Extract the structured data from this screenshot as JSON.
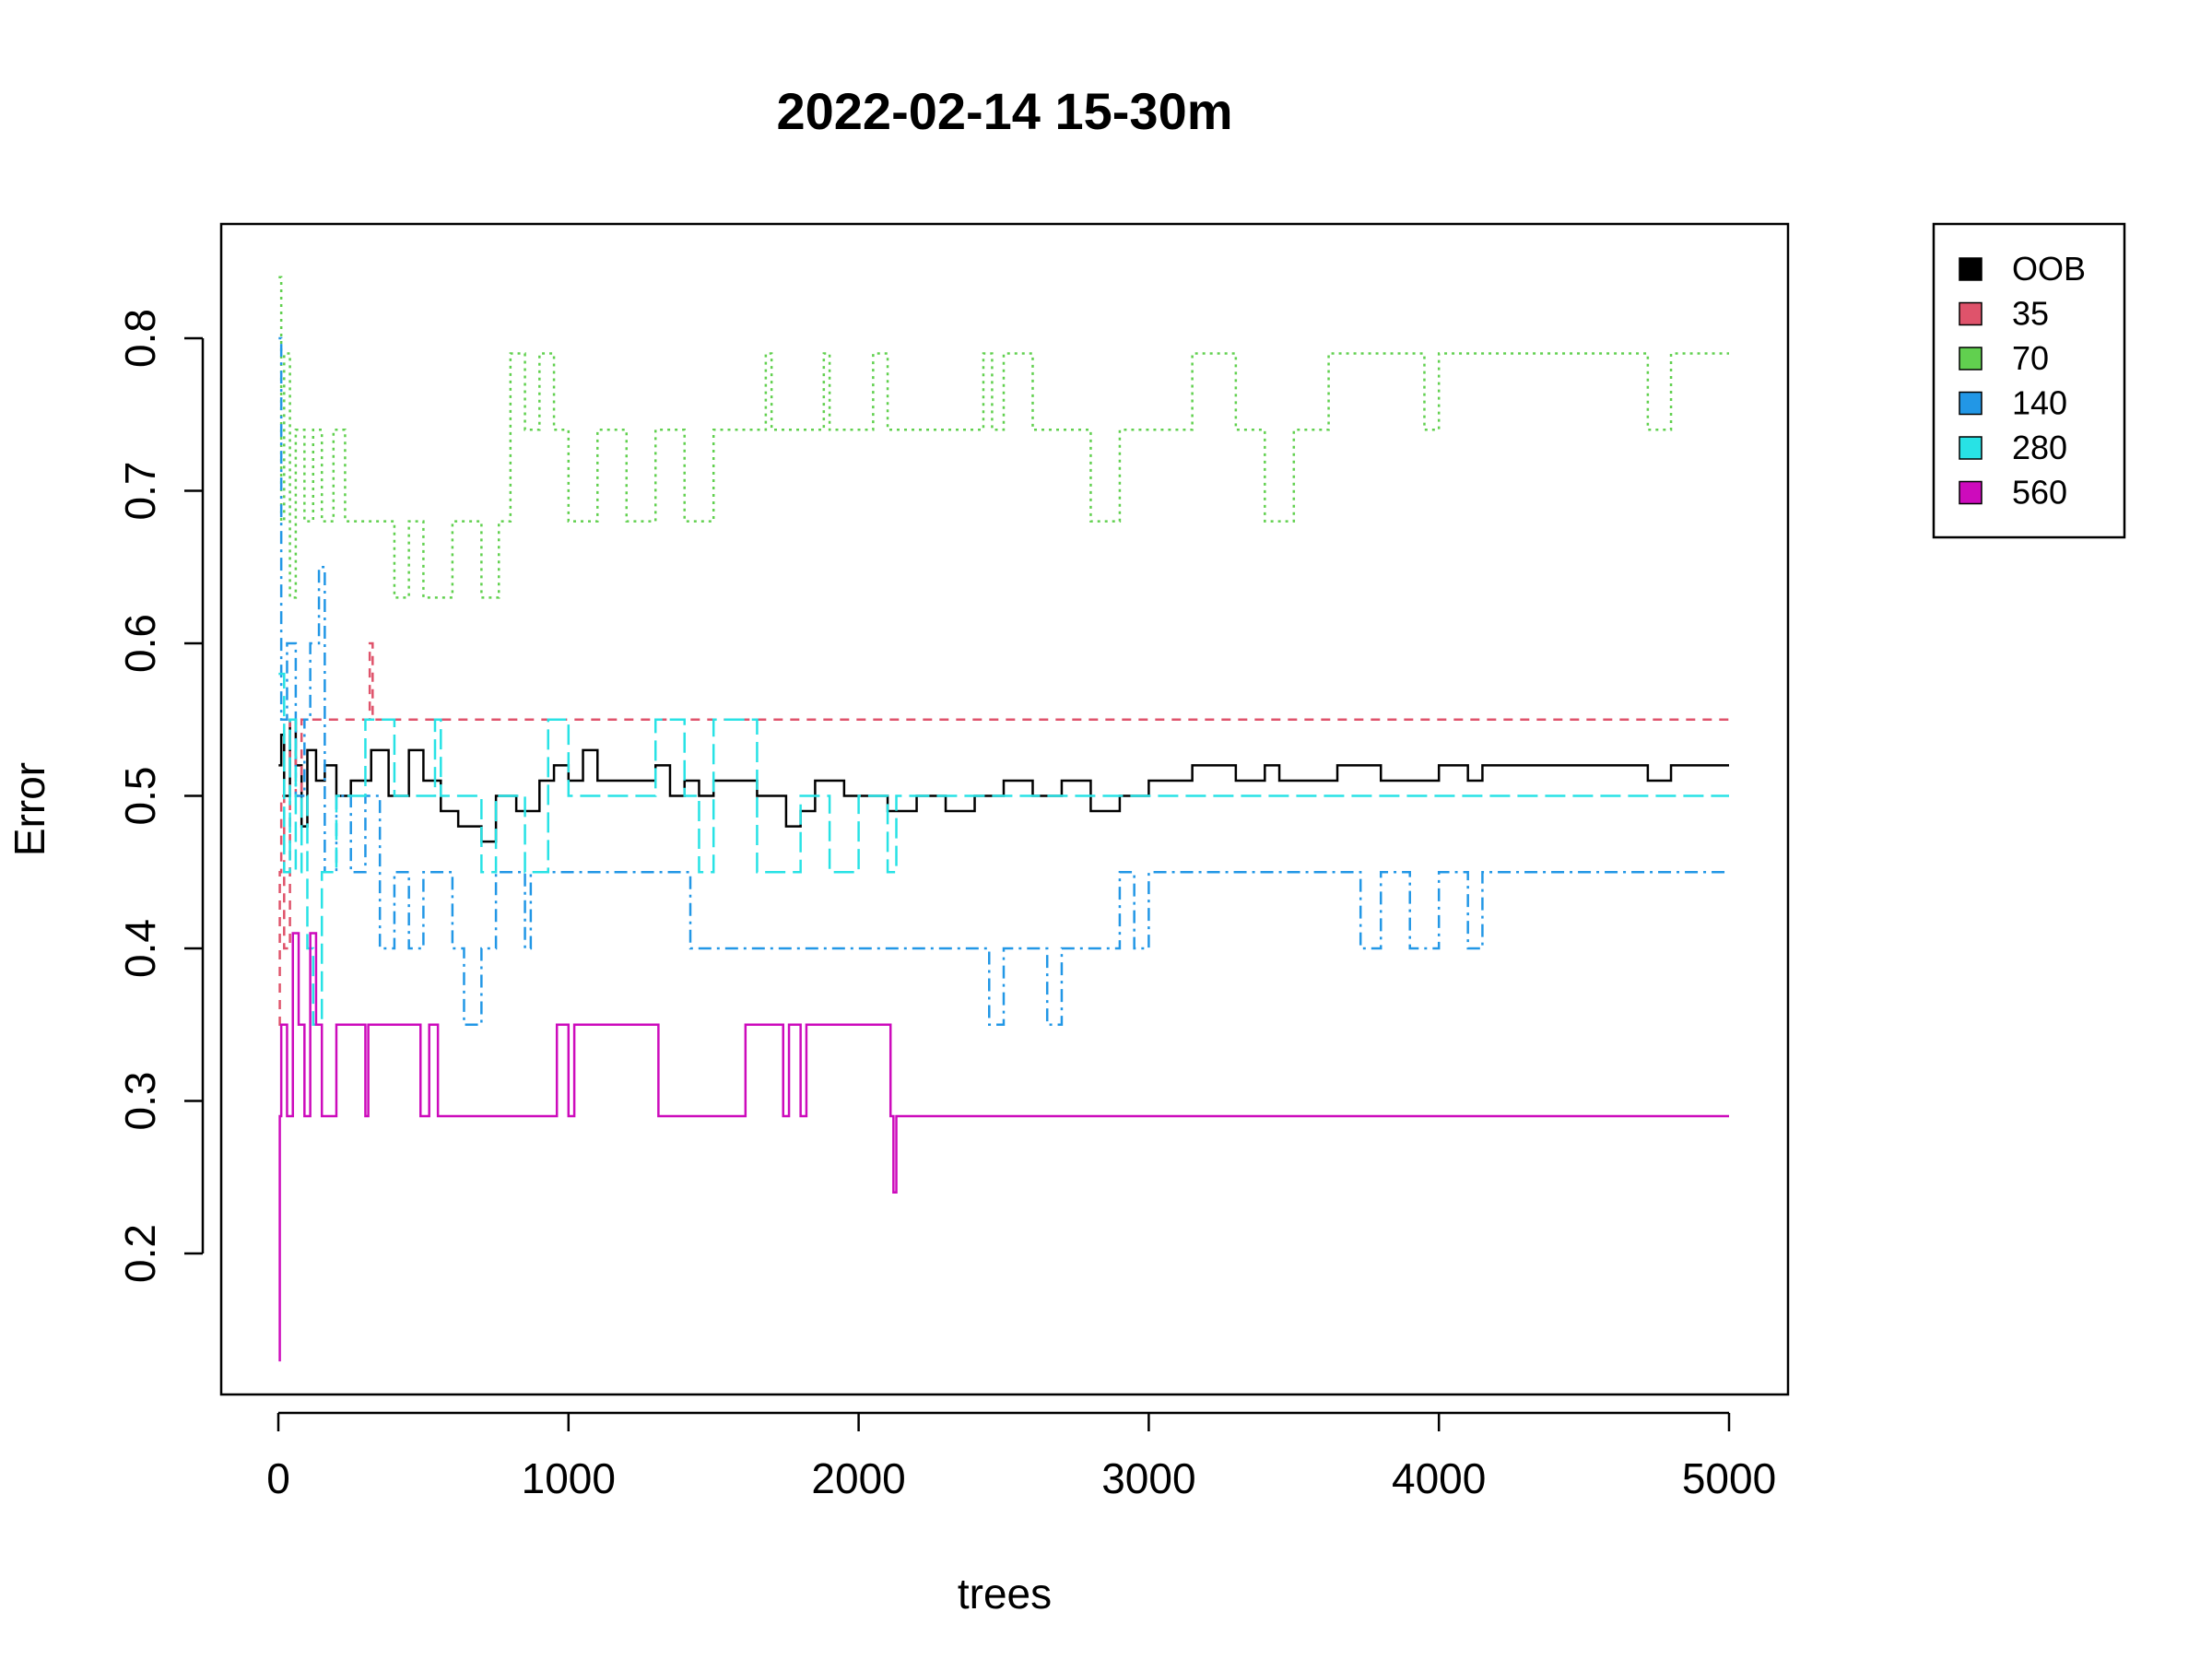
{
  "chart_data": {
    "type": "line",
    "title": "2022-02-14 15-30m",
    "xlabel": "trees",
    "ylabel": "Error",
    "xlim": [
      0,
      5000
    ],
    "ylim": [
      0.13,
      0.84
    ],
    "x_ticks": [
      0,
      1000,
      2000,
      3000,
      4000,
      5000
    ],
    "x_tick_labels": [
      "0",
      "1000",
      "2000",
      "3000",
      "4000",
      "5000"
    ],
    "y_ticks": [
      0.2,
      0.3,
      0.4,
      0.5,
      0.6,
      0.7,
      0.8
    ],
    "y_tick_labels": [
      "0.2",
      "0.3",
      "0.4",
      "0.5",
      "0.6",
      "0.7",
      "0.8"
    ],
    "grid": false,
    "legend_position": "top-right, outside plot",
    "series": [
      {
        "name": "OOB",
        "color": "#000000",
        "dash": "solid",
        "points": [
          [
            1,
            0.52
          ],
          [
            10,
            0.54
          ],
          [
            20,
            0.5
          ],
          [
            40,
            0.55
          ],
          [
            60,
            0.52
          ],
          [
            80,
            0.48
          ],
          [
            100,
            0.53
          ],
          [
            130,
            0.51
          ],
          [
            160,
            0.52
          ],
          [
            200,
            0.5
          ],
          [
            250,
            0.51
          ],
          [
            320,
            0.53
          ],
          [
            380,
            0.5
          ],
          [
            450,
            0.53
          ],
          [
            500,
            0.51
          ],
          [
            560,
            0.49
          ],
          [
            620,
            0.48
          ],
          [
            700,
            0.47
          ],
          [
            750,
            0.5
          ],
          [
            820,
            0.49
          ],
          [
            900,
            0.51
          ],
          [
            950,
            0.52
          ],
          [
            1000,
            0.51
          ],
          [
            1050,
            0.53
          ],
          [
            1100,
            0.51
          ],
          [
            1200,
            0.51
          ],
          [
            1300,
            0.52
          ],
          [
            1350,
            0.5
          ],
          [
            1400,
            0.51
          ],
          [
            1450,
            0.5
          ],
          [
            1500,
            0.51
          ],
          [
            1600,
            0.51
          ],
          [
            1650,
            0.5
          ],
          [
            1750,
            0.48
          ],
          [
            1800,
            0.49
          ],
          [
            1850,
            0.51
          ],
          [
            1950,
            0.5
          ],
          [
            2100,
            0.49
          ],
          [
            2200,
            0.5
          ],
          [
            2300,
            0.49
          ],
          [
            2400,
            0.5
          ],
          [
            2500,
            0.51
          ],
          [
            2600,
            0.5
          ],
          [
            2700,
            0.51
          ],
          [
            2800,
            0.49
          ],
          [
            2900,
            0.5
          ],
          [
            3000,
            0.51
          ],
          [
            3100,
            0.51
          ],
          [
            3150,
            0.52
          ],
          [
            3300,
            0.51
          ],
          [
            3400,
            0.52
          ],
          [
            3450,
            0.51
          ],
          [
            3600,
            0.51
          ],
          [
            3650,
            0.52
          ],
          [
            3800,
            0.51
          ],
          [
            3900,
            0.51
          ],
          [
            4000,
            0.52
          ],
          [
            4100,
            0.51
          ],
          [
            4150,
            0.52
          ],
          [
            4700,
            0.52
          ],
          [
            4720,
            0.51
          ],
          [
            4800,
            0.52
          ],
          [
            5000,
            0.52
          ]
        ]
      },
      {
        "name": "35",
        "color": "#df536b",
        "dash": "dashed",
        "points": [
          [
            1,
            0.35
          ],
          [
            5,
            0.45
          ],
          [
            10,
            0.5
          ],
          [
            20,
            0.4
          ],
          [
            40,
            0.55
          ],
          [
            60,
            0.5
          ],
          [
            80,
            0.55
          ],
          [
            150,
            0.55
          ],
          [
            300,
            0.55
          ],
          [
            315,
            0.6
          ],
          [
            325,
            0.55
          ],
          [
            5000,
            0.55
          ]
        ]
      },
      {
        "name": "70",
        "color": "#61d04f",
        "dash": "dotted",
        "points": [
          [
            1,
            0.84
          ],
          [
            10,
            0.68
          ],
          [
            20,
            0.79
          ],
          [
            40,
            0.63
          ],
          [
            60,
            0.74
          ],
          [
            90,
            0.68
          ],
          [
            120,
            0.74
          ],
          [
            150,
            0.68
          ],
          [
            190,
            0.74
          ],
          [
            230,
            0.68
          ],
          [
            300,
            0.68
          ],
          [
            400,
            0.63
          ],
          [
            450,
            0.68
          ],
          [
            500,
            0.63
          ],
          [
            600,
            0.68
          ],
          [
            700,
            0.63
          ],
          [
            760,
            0.68
          ],
          [
            800,
            0.79
          ],
          [
            850,
            0.74
          ],
          [
            900,
            0.79
          ],
          [
            950,
            0.74
          ],
          [
            1000,
            0.68
          ],
          [
            1100,
            0.74
          ],
          [
            1200,
            0.68
          ],
          [
            1300,
            0.74
          ],
          [
            1400,
            0.68
          ],
          [
            1500,
            0.74
          ],
          [
            1650,
            0.74
          ],
          [
            1680,
            0.79
          ],
          [
            1700,
            0.74
          ],
          [
            1850,
            0.74
          ],
          [
            1880,
            0.79
          ],
          [
            1900,
            0.74
          ],
          [
            2000,
            0.74
          ],
          [
            2050,
            0.79
          ],
          [
            2100,
            0.74
          ],
          [
            2400,
            0.74
          ],
          [
            2430,
            0.79
          ],
          [
            2460,
            0.74
          ],
          [
            2500,
            0.79
          ],
          [
            2600,
            0.74
          ],
          [
            2700,
            0.74
          ],
          [
            2800,
            0.68
          ],
          [
            2900,
            0.74
          ],
          [
            3000,
            0.74
          ],
          [
            3150,
            0.79
          ],
          [
            3300,
            0.74
          ],
          [
            3400,
            0.68
          ],
          [
            3500,
            0.74
          ],
          [
            3600,
            0.74
          ],
          [
            3620,
            0.79
          ],
          [
            3900,
            0.79
          ],
          [
            3950,
            0.74
          ],
          [
            4000,
            0.79
          ],
          [
            4100,
            0.79
          ],
          [
            4700,
            0.79
          ],
          [
            4720,
            0.74
          ],
          [
            4800,
            0.79
          ],
          [
            5000,
            0.79
          ]
        ]
      },
      {
        "name": "140",
        "color": "#2297e6",
        "dash": "dotdash",
        "points": [
          [
            1,
            0.8
          ],
          [
            10,
            0.55
          ],
          [
            30,
            0.6
          ],
          [
            60,
            0.5
          ],
          [
            90,
            0.55
          ],
          [
            110,
            0.6
          ],
          [
            140,
            0.65
          ],
          [
            160,
            0.45
          ],
          [
            200,
            0.5
          ],
          [
            250,
            0.45
          ],
          [
            300,
            0.5
          ],
          [
            350,
            0.4
          ],
          [
            400,
            0.45
          ],
          [
            450,
            0.4
          ],
          [
            500,
            0.45
          ],
          [
            600,
            0.4
          ],
          [
            640,
            0.35
          ],
          [
            700,
            0.4
          ],
          [
            750,
            0.45
          ],
          [
            800,
            0.45
          ],
          [
            850,
            0.4
          ],
          [
            870,
            0.45
          ],
          [
            1000,
            0.45
          ],
          [
            1100,
            0.45
          ],
          [
            1400,
            0.45
          ],
          [
            1420,
            0.4
          ],
          [
            2400,
            0.4
          ],
          [
            2450,
            0.35
          ],
          [
            2500,
            0.4
          ],
          [
            2600,
            0.4
          ],
          [
            2650,
            0.35
          ],
          [
            2700,
            0.4
          ],
          [
            2850,
            0.4
          ],
          [
            2900,
            0.45
          ],
          [
            2950,
            0.4
          ],
          [
            3000,
            0.45
          ],
          [
            3700,
            0.45
          ],
          [
            3730,
            0.4
          ],
          [
            3800,
            0.45
          ],
          [
            3900,
            0.4
          ],
          [
            4000,
            0.45
          ],
          [
            4100,
            0.4
          ],
          [
            4150,
            0.45
          ],
          [
            5000,
            0.45
          ]
        ]
      },
      {
        "name": "280",
        "color": "#28e2e5",
        "dash": "longdash",
        "points": [
          [
            1,
            0.58
          ],
          [
            20,
            0.45
          ],
          [
            40,
            0.55
          ],
          [
            60,
            0.45
          ],
          [
            80,
            0.5
          ],
          [
            100,
            0.4
          ],
          [
            120,
            0.35
          ],
          [
            150,
            0.45
          ],
          [
            200,
            0.5
          ],
          [
            300,
            0.55
          ],
          [
            400,
            0.5
          ],
          [
            500,
            0.5
          ],
          [
            540,
            0.55
          ],
          [
            560,
            0.5
          ],
          [
            700,
            0.45
          ],
          [
            750,
            0.5
          ],
          [
            850,
            0.45
          ],
          [
            930,
            0.55
          ],
          [
            1000,
            0.5
          ],
          [
            1100,
            0.5
          ],
          [
            1300,
            0.55
          ],
          [
            1400,
            0.5
          ],
          [
            1450,
            0.45
          ],
          [
            1500,
            0.55
          ],
          [
            1600,
            0.55
          ],
          [
            1650,
            0.45
          ],
          [
            1750,
            0.45
          ],
          [
            1800,
            0.5
          ],
          [
            1900,
            0.45
          ],
          [
            2000,
            0.5
          ],
          [
            2100,
            0.45
          ],
          [
            2130,
            0.5
          ],
          [
            5000,
            0.5
          ]
        ]
      },
      {
        "name": "560",
        "color": "#cd0bbc",
        "dash": "solid",
        "points": [
          [
            1,
            0.13
          ],
          [
            5,
            0.29
          ],
          [
            10,
            0.35
          ],
          [
            30,
            0.29
          ],
          [
            50,
            0.41
          ],
          [
            70,
            0.35
          ],
          [
            90,
            0.29
          ],
          [
            110,
            0.41
          ],
          [
            130,
            0.35
          ],
          [
            150,
            0.29
          ],
          [
            200,
            0.35
          ],
          [
            300,
            0.29
          ],
          [
            310,
            0.35
          ],
          [
            480,
            0.35
          ],
          [
            490,
            0.29
          ],
          [
            520,
            0.35
          ],
          [
            550,
            0.29
          ],
          [
            950,
            0.29
          ],
          [
            960,
            0.35
          ],
          [
            1000,
            0.29
          ],
          [
            1020,
            0.35
          ],
          [
            1300,
            0.35
          ],
          [
            1310,
            0.29
          ],
          [
            1600,
            0.29
          ],
          [
            1610,
            0.35
          ],
          [
            1720,
            0.35
          ],
          [
            1740,
            0.29
          ],
          [
            1760,
            0.35
          ],
          [
            1800,
            0.29
          ],
          [
            1820,
            0.35
          ],
          [
            2100,
            0.35
          ],
          [
            2110,
            0.29
          ],
          [
            2120,
            0.24
          ],
          [
            2130,
            0.29
          ],
          [
            5000,
            0.29
          ]
        ]
      }
    ]
  }
}
